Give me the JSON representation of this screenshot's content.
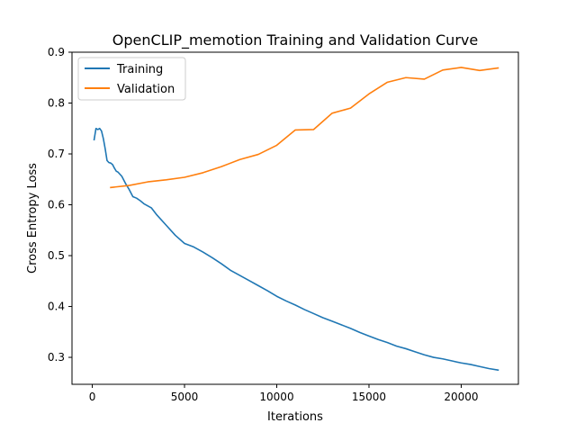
{
  "chart_data": {
    "type": "line",
    "title": "OpenCLIP_memotion Training and Validation Curve",
    "xlabel": "Iterations",
    "ylabel": "Cross Entropy Loss",
    "xlim": [
      -1100,
      23100
    ],
    "ylim": [
      0.247,
      0.9
    ],
    "xticks": [
      0,
      5000,
      10000,
      15000,
      20000
    ],
    "xtick_labels": [
      "0",
      "5000",
      "10000",
      "15000",
      "20000"
    ],
    "yticks": [
      0.3,
      0.4,
      0.5,
      0.6,
      0.7,
      0.8,
      0.9
    ],
    "ytick_labels": [
      "0.3",
      "0.4",
      "0.5",
      "0.6",
      "0.7",
      "0.8",
      "0.9"
    ],
    "grid": false,
    "legend": "top-left",
    "series": [
      {
        "name": "Training",
        "color": "#1f77b4",
        "x": [
          100,
          200,
          300,
          400,
          500,
          600,
          700,
          800,
          900,
          1000,
          1100,
          1200,
          1300,
          1400,
          1600,
          1800,
          2000,
          2200,
          2400,
          2600,
          2800,
          3000,
          3200,
          3500,
          4000,
          4500,
          5000,
          5500,
          6000,
          6500,
          7000,
          7500,
          8000,
          8500,
          9000,
          9500,
          10000,
          10500,
          11000,
          11500,
          12000,
          12500,
          13000,
          13500,
          14000,
          14500,
          15000,
          15500,
          16000,
          16500,
          17000,
          17500,
          18000,
          18500,
          19000,
          19500,
          20000,
          20500,
          21000,
          21500,
          22000
        ],
        "y": [
          0.728,
          0.75,
          0.748,
          0.75,
          0.745,
          0.73,
          0.71,
          0.687,
          0.683,
          0.682,
          0.679,
          0.672,
          0.666,
          0.664,
          0.656,
          0.642,
          0.63,
          0.616,
          0.613,
          0.608,
          0.602,
          0.598,
          0.594,
          0.58,
          0.56,
          0.54,
          0.524,
          0.517,
          0.507,
          0.496,
          0.484,
          0.471,
          0.461,
          0.451,
          0.441,
          0.431,
          0.42,
          0.411,
          0.403,
          0.394,
          0.386,
          0.378,
          0.371,
          0.364,
          0.357,
          0.349,
          0.342,
          0.335,
          0.329,
          0.322,
          0.317,
          0.311,
          0.305,
          0.3,
          0.297,
          0.293,
          0.289,
          0.286,
          0.282,
          0.278,
          0.275
        ]
      },
      {
        "name": "Validation",
        "color": "#ff7f0e",
        "x": [
          1000,
          2000,
          3000,
          4000,
          5000,
          6000,
          7000,
          8000,
          9000,
          10000,
          11000,
          12000,
          13000,
          14000,
          15000,
          16000,
          17000,
          18000,
          19000,
          20000,
          21000,
          22000
        ],
        "y": [
          0.634,
          0.638,
          0.645,
          0.649,
          0.654,
          0.663,
          0.675,
          0.689,
          0.699,
          0.717,
          0.747,
          0.748,
          0.78,
          0.79,
          0.818,
          0.841,
          0.85,
          0.847,
          0.865,
          0.87,
          0.864,
          0.869
        ]
      }
    ]
  }
}
